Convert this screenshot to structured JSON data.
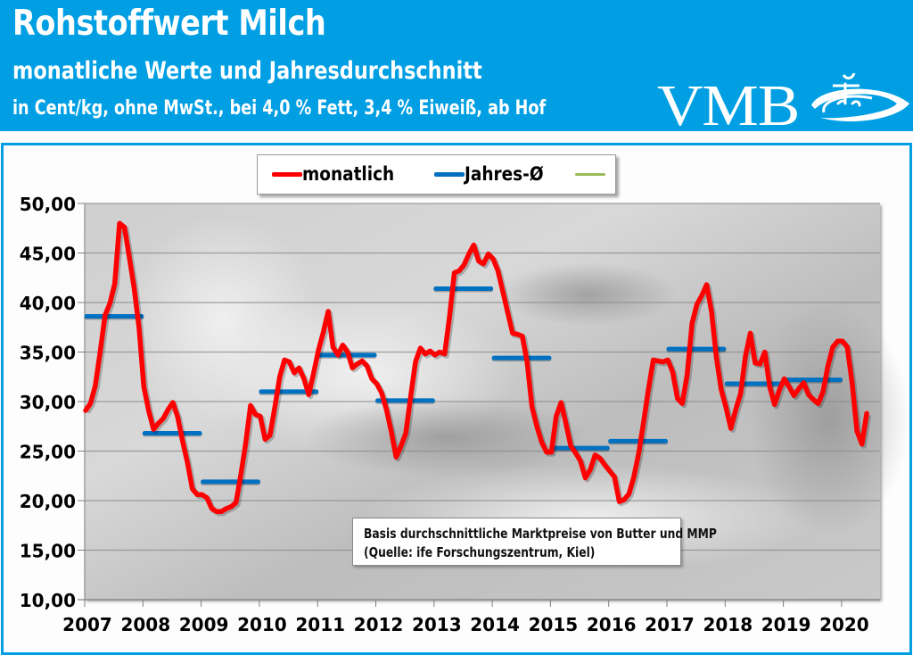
{
  "header": {
    "title": "Rohstoffwert Milch",
    "subtitle": "monatliche Werte und Jahresdurchschnitt",
    "unit_line": "in Cent/kg, ohne MwSt., bei 4,0 % Fett, 3,4 % Eiweiß, ab Hof",
    "logo_text": "VMB",
    "logo_icon": "splash-drop-icon",
    "brand_color": "#009fe3"
  },
  "legend": {
    "items": [
      {
        "label": "monatlich",
        "color": "#ff0000"
      },
      {
        "label": "Jahres-Ø",
        "color": "#0070c0"
      },
      {
        "label": "",
        "color": "#9bbb59"
      }
    ]
  },
  "note": {
    "line1": "Basis durchschnittliche Marktpreise von Butter und MMP",
    "line2": "(Quelle: ife Forschungszentrum, Kiel)"
  },
  "chart_data": {
    "type": "line",
    "title": "Rohstoffwert Milch",
    "subtitle": "monatliche Werte und Jahresdurchschnitt",
    "ylabel": "Cent/kg",
    "xlabel": "",
    "ylim": [
      10,
      50
    ],
    "yticks": [
      10,
      15,
      20,
      25,
      30,
      35,
      40,
      45,
      50
    ],
    "ytick_labels": [
      "10,00",
      "15,00",
      "20,00",
      "25,00",
      "30,00",
      "35,00",
      "40,00",
      "45,00",
      "50,00"
    ],
    "xtick_labels": [
      "2007",
      "2008",
      "2009",
      "2010",
      "2011",
      "2012",
      "2013",
      "2014",
      "2015",
      "2016",
      "2017",
      "2018",
      "2019",
      "2020"
    ],
    "x_start": "2007-01",
    "x_end": "2020-06",
    "grid": true,
    "legend_position": "top-center",
    "series": [
      {
        "name": "monatlich",
        "color": "#ff0000",
        "frequency": "monthly",
        "values": [
          29.1,
          29.8,
          31.6,
          35.0,
          38.7,
          39.9,
          41.9,
          48.0,
          47.6,
          44.6,
          41.5,
          37.5,
          31.5,
          29.1,
          27.2,
          27.8,
          28.3,
          29.2,
          29.9,
          28.4,
          26.0,
          23.8,
          21.2,
          20.6,
          20.6,
          20.3,
          19.2,
          18.9,
          18.9,
          19.2,
          19.4,
          19.8,
          22.6,
          25.8,
          29.6,
          28.7,
          28.5,
          26.2,
          26.6,
          29.4,
          32.5,
          34.2,
          34.0,
          32.9,
          33.4,
          32.3,
          30.7,
          32.9,
          35.2,
          37.0,
          39.1,
          35.5,
          34.7,
          35.7,
          35.0,
          33.4,
          33.8,
          34.1,
          33.6,
          32.3,
          31.8,
          30.9,
          29.2,
          27.0,
          24.4,
          25.5,
          26.8,
          30.5,
          34.0,
          35.4,
          34.8,
          35.1,
          34.7,
          35.0,
          34.8,
          38.5,
          43.0,
          43.2,
          43.8,
          44.9,
          45.8,
          44.2,
          43.9,
          44.9,
          44.4,
          43.2,
          41.1,
          39.0,
          36.9,
          36.8,
          36.6,
          34.0,
          29.5,
          27.5,
          25.9,
          24.9,
          24.9,
          28.5,
          29.9,
          27.8,
          25.5,
          24.8,
          24.0,
          22.3,
          23.1,
          24.6,
          24.3,
          23.6,
          23.0,
          22.4,
          19.9,
          20.1,
          20.7,
          22.4,
          24.8,
          27.9,
          31.2,
          34.2,
          34.1,
          34.0,
          34.2,
          33.0,
          30.3,
          29.8,
          32.8,
          37.9,
          39.8,
          40.7,
          41.8,
          39.1,
          34.5,
          31.2,
          29.4,
          27.3,
          29.2,
          30.8,
          34.6,
          36.9,
          33.9,
          33.8,
          35.0,
          31.5,
          29.7,
          31.2,
          32.3,
          31.5,
          30.6,
          31.3,
          31.9,
          30.7,
          30.2,
          29.8,
          31.0,
          33.6,
          35.5,
          36.1,
          36.1,
          35.5,
          31.8,
          27.0,
          25.7,
          28.8
        ]
      },
      {
        "name": "Jahres-Ø",
        "color": "#0070c0",
        "frequency": "yearly",
        "years": [
          2007,
          2008,
          2009,
          2010,
          2011,
          2012,
          2013,
          2014,
          2015,
          2016,
          2017,
          2018,
          2019
        ],
        "values": [
          38.6,
          26.8,
          21.9,
          31.0,
          34.7,
          30.1,
          41.4,
          34.4,
          25.3,
          26.0,
          35.3,
          31.8,
          32.2
        ]
      }
    ]
  }
}
